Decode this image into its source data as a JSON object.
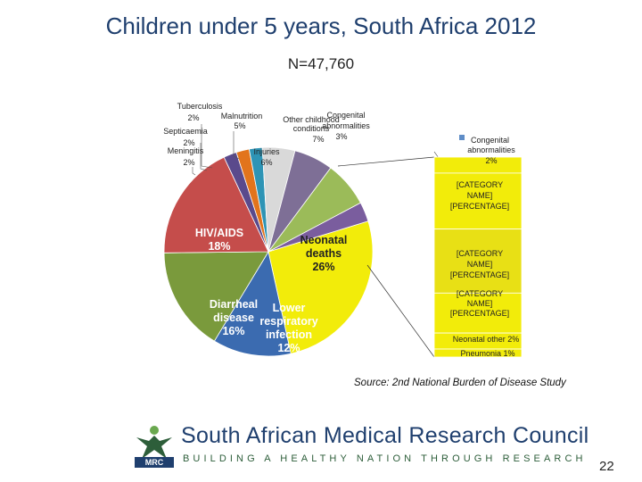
{
  "slide": {
    "title": "Children under 5 years, South Africa 2012",
    "subtitle": "N=47,760",
    "source": "Source: 2nd National Burden of Disease Study",
    "org_name": "South African Medical Research Council",
    "org_tagline": "BUILDING A HEALTHY NATION THROUGH RESEARCH",
    "logo_text": "MRC",
    "slide_number": "22"
  },
  "chart_data": {
    "type": "bar-of-pie",
    "title": "Children under 5 years, South Africa 2012",
    "subtitle": "N=47,760",
    "pie": [
      {
        "name": "Neonatal deaths",
        "pct_label": "26%",
        "value": 26,
        "color": "#f2ec0a"
      },
      {
        "name": "Lower respiratory infection",
        "pct_label": "12%",
        "value": 12,
        "color": "#3b6bb0"
      },
      {
        "name": "Diarrheal disease",
        "pct_label": "16%",
        "value": 16,
        "color": "#7a9a3c"
      },
      {
        "name": "HIV/AIDS",
        "pct_label": "18%",
        "value": 18,
        "color": "#c54d4b"
      },
      {
        "name": "Meningitis",
        "pct_label": "2%",
        "value": 2,
        "color": "#5a4a8c"
      },
      {
        "name": "Septicaemia",
        "pct_label": "2%",
        "value": 2,
        "color": "#e2741c"
      },
      {
        "name": "Tuberculosis",
        "pct_label": "2%",
        "value": 2,
        "color": "#2e94b5"
      },
      {
        "name": "Malnutrition",
        "pct_label": "5%",
        "value": 5,
        "color": "#d9d9d9"
      },
      {
        "name": "Injuries",
        "pct_label": "6%",
        "value": 6,
        "color": "#7e6f96"
      },
      {
        "name": "Other childhood conditions",
        "pct_label": "7%",
        "value": 7,
        "color": "#9bbb59"
      },
      {
        "name": "Congenital abnormalities",
        "pct_label": "3%",
        "value": 3,
        "color": "#7a5d9e"
      }
    ],
    "bar": [
      {
        "name": "Congenital abnormalities",
        "pct_label": "2%",
        "value": 2,
        "color": "#f2ec0a"
      },
      {
        "name": "[CATEGORY NAME]",
        "pct_label": "[PERCENTAGE]",
        "value": 7,
        "color": "#f2ec0a"
      },
      {
        "name": "[CATEGORY NAME]",
        "pct_label": "[PERCENTAGE]",
        "value": 8,
        "color": "#e8e015"
      },
      {
        "name": "[CATEGORY NAME]",
        "pct_label": "[PERCENTAGE]",
        "value": 5,
        "color": "#f2ec0a"
      },
      {
        "name": "Neonatal other",
        "pct_label": "2%",
        "value": 2,
        "color": "#f2ec0a"
      },
      {
        "name": "Pneumonia",
        "pct_label": "1%",
        "value": 1,
        "color": "#f2ec0a"
      }
    ],
    "legend_marker": "Congenital abnormalities"
  }
}
